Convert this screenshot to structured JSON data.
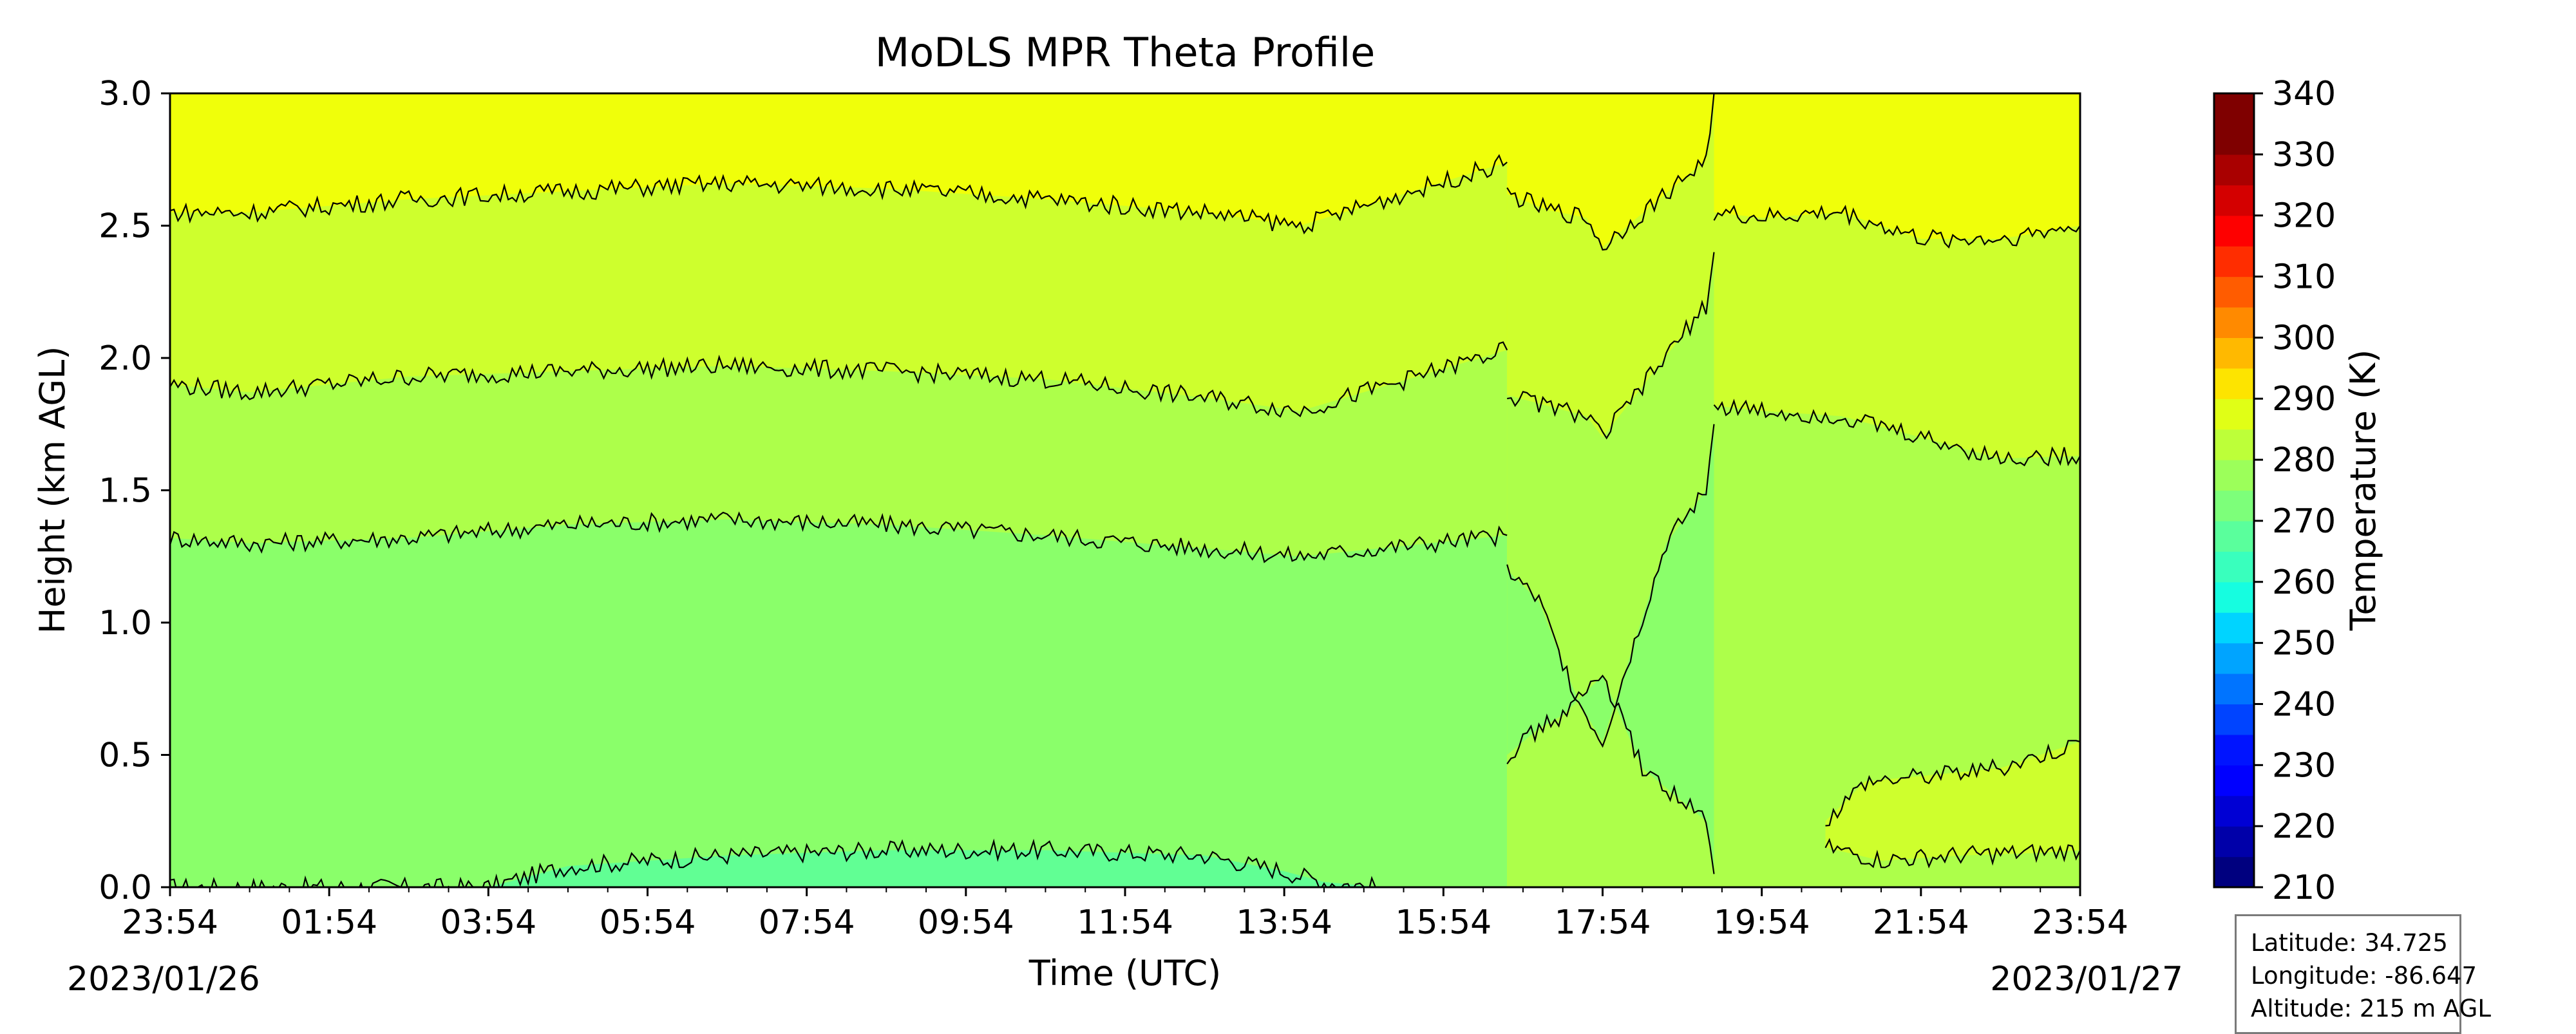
{
  "chart_data": {
    "type": "heatmap",
    "subtype": "filled-contour",
    "title": "MoDLS MPR Theta Profile",
    "xlabel": "Time (UTC)",
    "ylabel": "Height (km AGL)",
    "x_tick_labels": [
      "23:54",
      "01:54",
      "03:54",
      "05:54",
      "07:54",
      "09:54",
      "11:54",
      "13:54",
      "15:54",
      "17:54",
      "19:54",
      "21:54",
      "23:54"
    ],
    "x_hours": [
      0,
      2,
      4,
      6,
      8,
      10,
      12,
      14,
      16,
      18,
      20,
      22,
      24
    ],
    "xlim_hours": [
      0,
      24
    ],
    "start_date_label": "2023/01/26",
    "end_date_label": "2023/01/27",
    "y_ticks": [
      "0.0",
      "0.5",
      "1.0",
      "1.5",
      "2.0",
      "2.5",
      "3.0"
    ],
    "ylim": [
      0,
      3.0
    ],
    "colorbar": {
      "label": "Temperature (K)",
      "ticks": [
        210,
        220,
        230,
        240,
        250,
        260,
        270,
        280,
        290,
        300,
        310,
        320,
        330,
        340
      ],
      "range": [
        210,
        340
      ],
      "level_step": 5,
      "colormap": "jet",
      "level_colors": [
        "#00007f",
        "#0000a9",
        "#0000d4",
        "#0000ff",
        "#0014ff",
        "#0044ff",
        "#0074ff",
        "#00a4ff",
        "#00d4ff",
        "#16fde0",
        "#39ffbd",
        "#5aff9c",
        "#7dff7a",
        "#9cff5a",
        "#bdff39",
        "#e0ff16",
        "#fde400",
        "#ffb900",
        "#ff8a00",
        "#ff5c00",
        "#ff2d00",
        "#fe0000",
        "#d40000",
        "#a90000",
        "#7f0000",
        "#7f0000"
      ]
    },
    "contour_bands": [
      {
        "range_K": [
          270,
          275
        ],
        "color": "#61ff94",
        "region": "near-surface layer, about 04:00–14:30, below about 0.15 km"
      },
      {
        "range_K": [
          275,
          280
        ],
        "color": "#8aff6a",
        "region": "surface to about 1.3 km, 00:00–17:00"
      },
      {
        "range_K": [
          280,
          285
        ],
        "color": "#adff4a",
        "region": "about 1.3–1.9 km before 17:00; surface to about 1.7 km afterwards"
      },
      {
        "range_K": [
          285,
          290
        ],
        "color": "#ceff2d",
        "region": "about 1.9–2.6 km before 17:00; about 1.7–2.5 km afterwards; near surface after 20:30"
      },
      {
        "range_K": [
          290,
          295
        ],
        "color": "#f0ff0a",
        "region": "above about 2.6 km"
      }
    ],
    "contour_lines": [
      {
        "name": "surface layer",
        "points": [
          [
            0,
            0.0
          ],
          [
            4.0,
            0.0
          ],
          [
            5.0,
            0.08
          ],
          [
            7.0,
            0.12
          ],
          [
            9.0,
            0.14
          ],
          [
            11.0,
            0.14
          ],
          [
            13.0,
            0.12
          ],
          [
            14.0,
            0.06
          ],
          [
            14.5,
            0.02
          ],
          [
            15.2,
            0.0
          ]
        ]
      },
      {
        "name": "lower",
        "points": [
          [
            0,
            1.32
          ],
          [
            1,
            1.3
          ],
          [
            3,
            1.32
          ],
          [
            5,
            1.37
          ],
          [
            7,
            1.39
          ],
          [
            9,
            1.37
          ],
          [
            11,
            1.33
          ],
          [
            13,
            1.28
          ],
          [
            14.2,
            1.25
          ],
          [
            16.8,
            1.33
          ]
        ]
      },
      {
        "name": "middle",
        "points": [
          [
            0,
            1.9
          ],
          [
            1,
            1.87
          ],
          [
            3,
            1.93
          ],
          [
            5,
            1.95
          ],
          [
            7,
            1.97
          ],
          [
            9,
            1.95
          ],
          [
            11,
            1.92
          ],
          [
            13,
            1.85
          ],
          [
            14.2,
            1.8
          ],
          [
            16.8,
            2.03
          ]
        ]
      },
      {
        "name": "upper",
        "points": [
          [
            0,
            2.55
          ],
          [
            1,
            2.55
          ],
          [
            3,
            2.6
          ],
          [
            5,
            2.63
          ],
          [
            7,
            2.66
          ],
          [
            9,
            2.64
          ],
          [
            11,
            2.6
          ],
          [
            13,
            2.55
          ],
          [
            14.2,
            2.5
          ],
          [
            16.8,
            2.74
          ]
        ]
      },
      {
        "name": "upper afternoon",
        "points": [
          [
            16.8,
            2.62
          ],
          [
            17.3,
            2.56
          ],
          [
            17.8,
            2.53
          ],
          [
            18.0,
            2.42
          ],
          [
            19.3,
            2.75
          ],
          [
            19.4,
            3.0
          ]
        ]
      },
      {
        "name": "upper evening",
        "points": [
          [
            19.4,
            2.55
          ],
          [
            20,
            2.53
          ],
          [
            21,
            2.55
          ],
          [
            22,
            2.45
          ],
          [
            23,
            2.45
          ],
          [
            24,
            2.5
          ]
        ]
      },
      {
        "name": "middle afternoon",
        "points": [
          [
            16.8,
            1.86
          ],
          [
            17.3,
            1.82
          ],
          [
            17.8,
            1.78
          ],
          [
            18.0,
            1.7
          ],
          [
            19.3,
            2.2
          ],
          [
            19.4,
            2.4
          ]
        ]
      },
      {
        "name": "middle evening",
        "points": [
          [
            19.4,
            1.82
          ],
          [
            20,
            1.8
          ],
          [
            21,
            1.78
          ],
          [
            22,
            1.7
          ],
          [
            23,
            1.62
          ],
          [
            24,
            1.63
          ]
        ]
      },
      {
        "name": "lower afternoon",
        "points": [
          [
            16.8,
            1.2
          ],
          [
            17.2,
            1.08
          ],
          [
            17.5,
            0.85
          ],
          [
            17.7,
            0.7
          ],
          [
            18.0,
            0.55
          ],
          [
            18.8,
            1.3
          ],
          [
            19.3,
            1.5
          ],
          [
            19.4,
            1.75
          ]
        ]
      },
      {
        "name": "lower afternoon bottom",
        "points": [
          [
            16.8,
            0.5
          ],
          [
            17.2,
            0.6
          ],
          [
            17.5,
            0.65
          ],
          [
            18.0,
            0.8
          ],
          [
            18.5,
            0.45
          ],
          [
            19.3,
            0.25
          ],
          [
            19.4,
            0.05
          ]
        ]
      },
      {
        "name": "near surface evening",
        "points": [
          [
            20.8,
            0.25
          ],
          [
            21.3,
            0.4
          ],
          [
            22,
            0.42
          ],
          [
            23,
            0.45
          ],
          [
            24,
            0.55
          ]
        ]
      },
      {
        "name": "surface evening",
        "points": [
          [
            20.8,
            0.15
          ],
          [
            21.5,
            0.1
          ],
          [
            22.5,
            0.12
          ],
          [
            23.5,
            0.13
          ],
          [
            24,
            0.14
          ]
        ]
      }
    ]
  },
  "info_box": {
    "latitude": "Latitude: 34.725",
    "longitude": "Longitude: -86.647",
    "altitude": "Altitude: 215 m AGL"
  }
}
